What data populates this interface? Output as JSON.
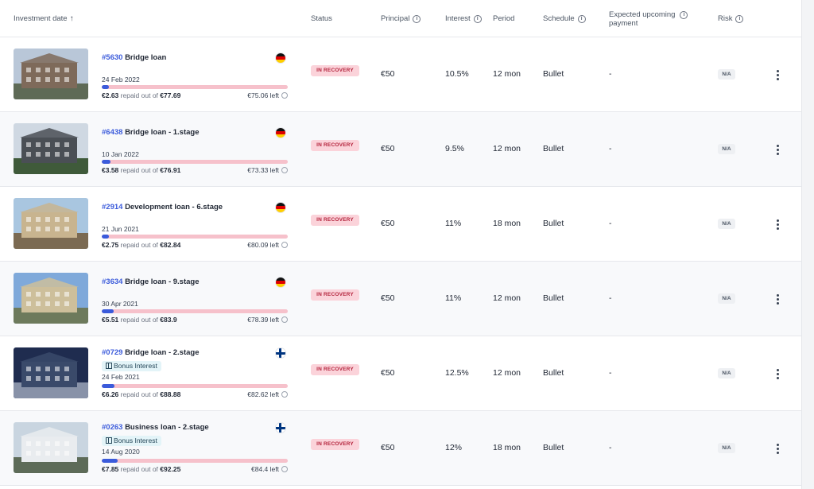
{
  "header": {
    "investment_date": "Investment date",
    "sort_arrow": "↑",
    "status": "Status",
    "principal": "Principal",
    "interest": "Interest",
    "period": "Period",
    "schedule": "Schedule",
    "expected_line1": "Expected upcoming",
    "expected_line2": "payment",
    "risk": "Risk",
    "info_glyph": "i"
  },
  "rows": [
    {
      "id": "#5630",
      "title": "Bridge loan",
      "flag": "de",
      "bonus": "",
      "date": "24 Feb 2022",
      "repaid": "€2.63",
      "repaid_text": "repaid out of",
      "total": "€77.69",
      "left": "€75.06 left",
      "progress": 0.034,
      "status": "IN RECOVERY",
      "principal": "€50",
      "interest": "10.5%",
      "period": "12 mon",
      "schedule": "Bullet",
      "expected": "-",
      "risk": "N/A",
      "image": "building-photo"
    },
    {
      "id": "#6438",
      "title": "Bridge loan - 1.stage",
      "flag": "de",
      "bonus": "",
      "date": "10 Jan 2022",
      "repaid": "€3.58",
      "repaid_text": "repaid out of",
      "total": "€76.91",
      "left": "€73.33 left",
      "progress": 0.047,
      "status": "IN RECOVERY",
      "principal": "€50",
      "interest": "9.5%",
      "period": "12 mon",
      "schedule": "Bullet",
      "expected": "-",
      "risk": "N/A",
      "image": "building-photo"
    },
    {
      "id": "#2914",
      "title": "Development loan - 6.stage",
      "flag": "de",
      "bonus": "",
      "date": "21 Jun 2021",
      "repaid": "€2.75",
      "repaid_text": "repaid out of",
      "total": "€82.84",
      "left": "€80.09 left",
      "progress": 0.033,
      "status": "IN RECOVERY",
      "principal": "€50",
      "interest": "11%",
      "period": "18 mon",
      "schedule": "Bullet",
      "expected": "-",
      "risk": "N/A",
      "image": "building-photo"
    },
    {
      "id": "#3634",
      "title": "Bridge loan - 9.stage",
      "flag": "de",
      "bonus": "",
      "date": "30 Apr 2021",
      "repaid": "€5.51",
      "repaid_text": "repaid out of",
      "total": "€83.9",
      "left": "€78.39 left",
      "progress": 0.066,
      "status": "IN RECOVERY",
      "principal": "€50",
      "interest": "11%",
      "period": "12 mon",
      "schedule": "Bullet",
      "expected": "-",
      "risk": "N/A",
      "image": "building-photo"
    },
    {
      "id": "#0729",
      "title": "Bridge loan - 2.stage",
      "flag": "fi",
      "bonus": "Bonus Interest",
      "date": "24 Feb 2021",
      "repaid": "€6.26",
      "repaid_text": "repaid out of",
      "total": "€88.88",
      "left": "€82.62 left",
      "progress": 0.07,
      "status": "IN RECOVERY",
      "principal": "€50",
      "interest": "12.5%",
      "period": "12 mon",
      "schedule": "Bullet",
      "expected": "-",
      "risk": "N/A",
      "image": "building-photo"
    },
    {
      "id": "#0263",
      "title": "Business loan - 2.stage",
      "flag": "fi",
      "bonus": "Bonus Interest",
      "date": "14 Aug 2020",
      "repaid": "€7.85",
      "repaid_text": "repaid out of",
      "total": "€92.25",
      "left": "€84.4 left",
      "progress": 0.085,
      "status": "IN RECOVERY",
      "principal": "€50",
      "interest": "12%",
      "period": "18 mon",
      "schedule": "Bullet",
      "expected": "-",
      "risk": "N/A",
      "image": "building-photo"
    }
  ],
  "colors": {
    "accent": "#3b5bdb",
    "status_bg": "#fbd3da",
    "status_text": "#b4233c",
    "bar_track": "#f6c1cb",
    "bonus_bg": "#e3f4f8"
  }
}
